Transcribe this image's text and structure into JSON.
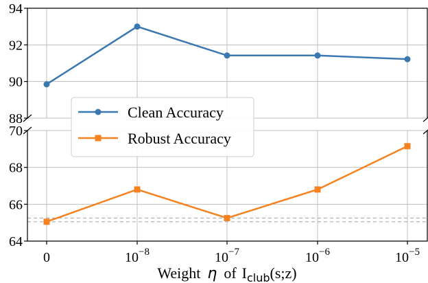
{
  "chart_data": {
    "type": "line",
    "broken_y_axis": true,
    "xlabel": {
      "prefix": "Weight",
      "symbol": "η",
      "middle": "of",
      "term_main": "I",
      "term_sub": "club",
      "term_args": "(s;z)"
    },
    "x_categories": [
      {
        "base": "0",
        "exp": ""
      },
      {
        "base": "10",
        "exp": "−8"
      },
      {
        "base": "10",
        "exp": "−7"
      },
      {
        "base": "10",
        "exp": "−6"
      },
      {
        "base": "10",
        "exp": "−5"
      }
    ],
    "upper_panel": {
      "ylim": [
        88,
        94
      ],
      "yticks": [
        "88",
        "90",
        "92",
        "94"
      ]
    },
    "lower_panel": {
      "ylim": [
        64,
        70
      ],
      "yticks": [
        "64",
        "66",
        "68",
        "70"
      ]
    },
    "series": [
      {
        "name": "Clean Accuracy",
        "color": "#3b78b0",
        "marker": "circle",
        "panel": "upper",
        "values": [
          89.85,
          93.0,
          91.42,
          91.42,
          91.22
        ]
      },
      {
        "name": "Robust Accuracy",
        "color": "#f5821f",
        "marker": "square",
        "panel": "lower",
        "values": [
          65.05,
          66.8,
          65.25,
          66.8,
          69.15
        ]
      }
    ],
    "reference_lines": [
      {
        "value": 65.05,
        "panel": "lower",
        "style": "dashed",
        "color": "#aaaaaa"
      },
      {
        "value": 65.25,
        "panel": "lower",
        "style": "dashed",
        "color": "#aaaaaa"
      }
    ],
    "grid": true,
    "legend_position": "center-left"
  }
}
